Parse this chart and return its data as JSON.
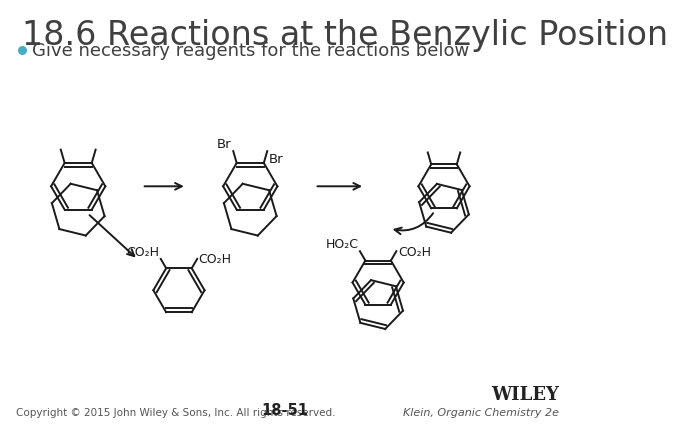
{
  "title": "18.6 Reactions at the Benzylic Position",
  "subtitle": "Give necessary reagents for the reactions below",
  "bullet_color": "#4BACC6",
  "title_color": "#404040",
  "subtitle_color": "#404040",
  "background_color": "#FFFFFF",
  "footer_left": "Copyright © 2015 John Wiley & Sons, Inc. All rights reserved.",
  "footer_center": "18-51",
  "footer_right_line1": "WILEY",
  "footer_right_line2": "Klein, Organic Chemistry 2e",
  "line_color": "#1a1a1a",
  "title_fontsize": 24,
  "subtitle_fontsize": 13,
  "footer_fontsize": 7.5
}
